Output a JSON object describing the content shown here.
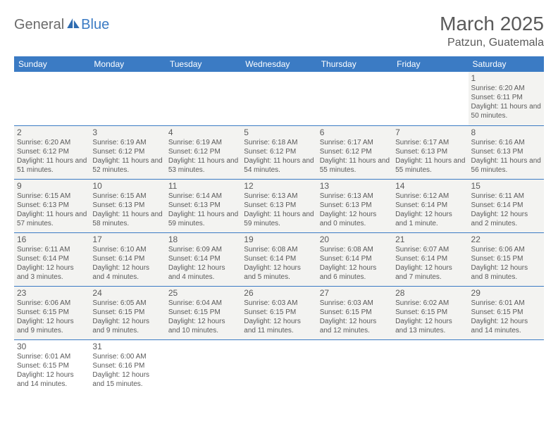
{
  "logo": {
    "part1": "General",
    "part2": "Blue"
  },
  "title": "March 2025",
  "location": "Patzun, Guatemala",
  "colors": {
    "header_bg": "#3b7bc4",
    "header_fg": "#ffffff",
    "cell_bg": "#f3f3f1",
    "text": "#5a5a5a",
    "rule": "#3b7bc4"
  },
  "weekdays": [
    "Sunday",
    "Monday",
    "Tuesday",
    "Wednesday",
    "Thursday",
    "Friday",
    "Saturday"
  ],
  "weeks": [
    [
      null,
      null,
      null,
      null,
      null,
      null,
      {
        "d": "1",
        "sr": "6:20 AM",
        "ss": "6:11 PM",
        "dl": "11 hours and 50 minutes."
      }
    ],
    [
      {
        "d": "2",
        "sr": "6:20 AM",
        "ss": "6:12 PM",
        "dl": "11 hours and 51 minutes."
      },
      {
        "d": "3",
        "sr": "6:19 AM",
        "ss": "6:12 PM",
        "dl": "11 hours and 52 minutes."
      },
      {
        "d": "4",
        "sr": "6:19 AM",
        "ss": "6:12 PM",
        "dl": "11 hours and 53 minutes."
      },
      {
        "d": "5",
        "sr": "6:18 AM",
        "ss": "6:12 PM",
        "dl": "11 hours and 54 minutes."
      },
      {
        "d": "6",
        "sr": "6:17 AM",
        "ss": "6:12 PM",
        "dl": "11 hours and 55 minutes."
      },
      {
        "d": "7",
        "sr": "6:17 AM",
        "ss": "6:13 PM",
        "dl": "11 hours and 55 minutes."
      },
      {
        "d": "8",
        "sr": "6:16 AM",
        "ss": "6:13 PM",
        "dl": "11 hours and 56 minutes."
      }
    ],
    [
      {
        "d": "9",
        "sr": "6:15 AM",
        "ss": "6:13 PM",
        "dl": "11 hours and 57 minutes."
      },
      {
        "d": "10",
        "sr": "6:15 AM",
        "ss": "6:13 PM",
        "dl": "11 hours and 58 minutes."
      },
      {
        "d": "11",
        "sr": "6:14 AM",
        "ss": "6:13 PM",
        "dl": "11 hours and 59 minutes."
      },
      {
        "d": "12",
        "sr": "6:13 AM",
        "ss": "6:13 PM",
        "dl": "11 hours and 59 minutes."
      },
      {
        "d": "13",
        "sr": "6:13 AM",
        "ss": "6:13 PM",
        "dl": "12 hours and 0 minutes."
      },
      {
        "d": "14",
        "sr": "6:12 AM",
        "ss": "6:14 PM",
        "dl": "12 hours and 1 minute."
      },
      {
        "d": "15",
        "sr": "6:11 AM",
        "ss": "6:14 PM",
        "dl": "12 hours and 2 minutes."
      }
    ],
    [
      {
        "d": "16",
        "sr": "6:11 AM",
        "ss": "6:14 PM",
        "dl": "12 hours and 3 minutes."
      },
      {
        "d": "17",
        "sr": "6:10 AM",
        "ss": "6:14 PM",
        "dl": "12 hours and 4 minutes."
      },
      {
        "d": "18",
        "sr": "6:09 AM",
        "ss": "6:14 PM",
        "dl": "12 hours and 4 minutes."
      },
      {
        "d": "19",
        "sr": "6:08 AM",
        "ss": "6:14 PM",
        "dl": "12 hours and 5 minutes."
      },
      {
        "d": "20",
        "sr": "6:08 AM",
        "ss": "6:14 PM",
        "dl": "12 hours and 6 minutes."
      },
      {
        "d": "21",
        "sr": "6:07 AM",
        "ss": "6:14 PM",
        "dl": "12 hours and 7 minutes."
      },
      {
        "d": "22",
        "sr": "6:06 AM",
        "ss": "6:15 PM",
        "dl": "12 hours and 8 minutes."
      }
    ],
    [
      {
        "d": "23",
        "sr": "6:06 AM",
        "ss": "6:15 PM",
        "dl": "12 hours and 9 minutes."
      },
      {
        "d": "24",
        "sr": "6:05 AM",
        "ss": "6:15 PM",
        "dl": "12 hours and 9 minutes."
      },
      {
        "d": "25",
        "sr": "6:04 AM",
        "ss": "6:15 PM",
        "dl": "12 hours and 10 minutes."
      },
      {
        "d": "26",
        "sr": "6:03 AM",
        "ss": "6:15 PM",
        "dl": "12 hours and 11 minutes."
      },
      {
        "d": "27",
        "sr": "6:03 AM",
        "ss": "6:15 PM",
        "dl": "12 hours and 12 minutes."
      },
      {
        "d": "28",
        "sr": "6:02 AM",
        "ss": "6:15 PM",
        "dl": "12 hours and 13 minutes."
      },
      {
        "d": "29",
        "sr": "6:01 AM",
        "ss": "6:15 PM",
        "dl": "12 hours and 14 minutes."
      }
    ],
    [
      {
        "d": "30",
        "sr": "6:01 AM",
        "ss": "6:15 PM",
        "dl": "12 hours and 14 minutes."
      },
      {
        "d": "31",
        "sr": "6:00 AM",
        "ss": "6:16 PM",
        "dl": "12 hours and 15 minutes."
      },
      null,
      null,
      null,
      null,
      null
    ]
  ],
  "labels": {
    "sunrise": "Sunrise:",
    "sunset": "Sunset:",
    "daylight": "Daylight:"
  }
}
